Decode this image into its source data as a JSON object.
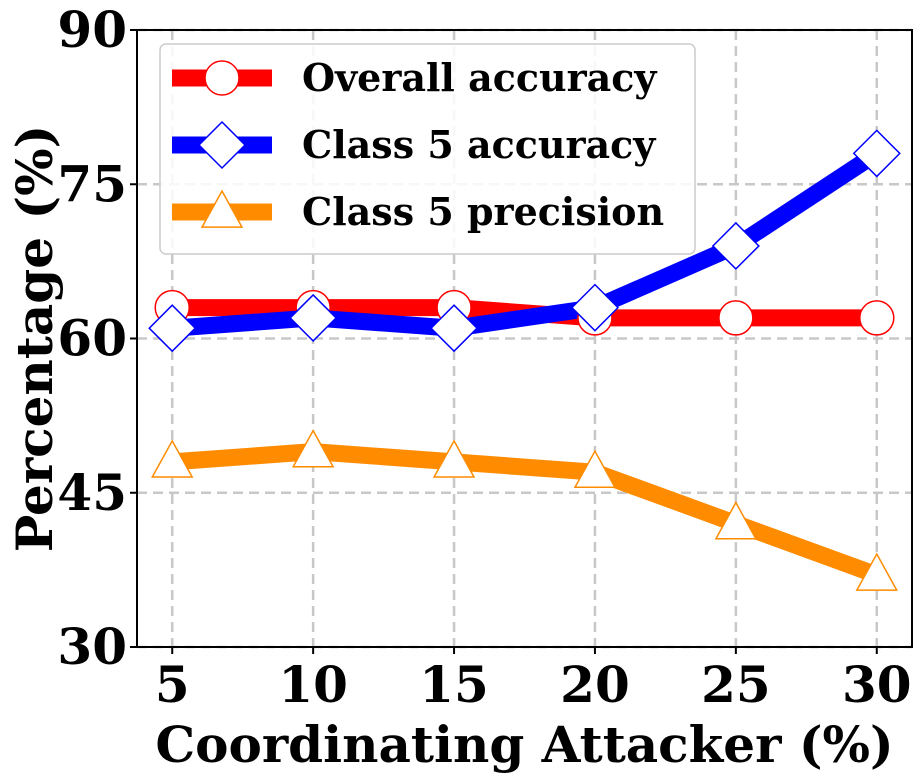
{
  "chart_data": {
    "type": "line",
    "x": [
      5,
      10,
      15,
      20,
      25,
      30
    ],
    "xlabel": "Coordinating Attacker (%)",
    "ylabel": "Percentage (%)",
    "xlim": [
      3.75,
      31.25
    ],
    "ylim": [
      30,
      90
    ],
    "xticks": [
      "5",
      "10",
      "15",
      "20",
      "25",
      "30"
    ],
    "yticks": [
      "30",
      "45",
      "60",
      "75",
      "90"
    ],
    "grid": true,
    "legend_position": "top-left",
    "series": [
      {
        "name": "Overall accuracy",
        "values": [
          63,
          63,
          63,
          62,
          62,
          62
        ],
        "color": "#ff0000",
        "marker": "circle"
      },
      {
        "name": "Class 5 accuracy",
        "values": [
          61,
          62,
          61,
          63,
          69,
          78
        ],
        "color": "#0000ff",
        "marker": "diamond"
      },
      {
        "name": "Class 5 precision",
        "values": [
          48,
          49,
          48,
          47,
          42,
          37
        ],
        "color": "#ff8c00",
        "marker": "triangle"
      }
    ]
  }
}
